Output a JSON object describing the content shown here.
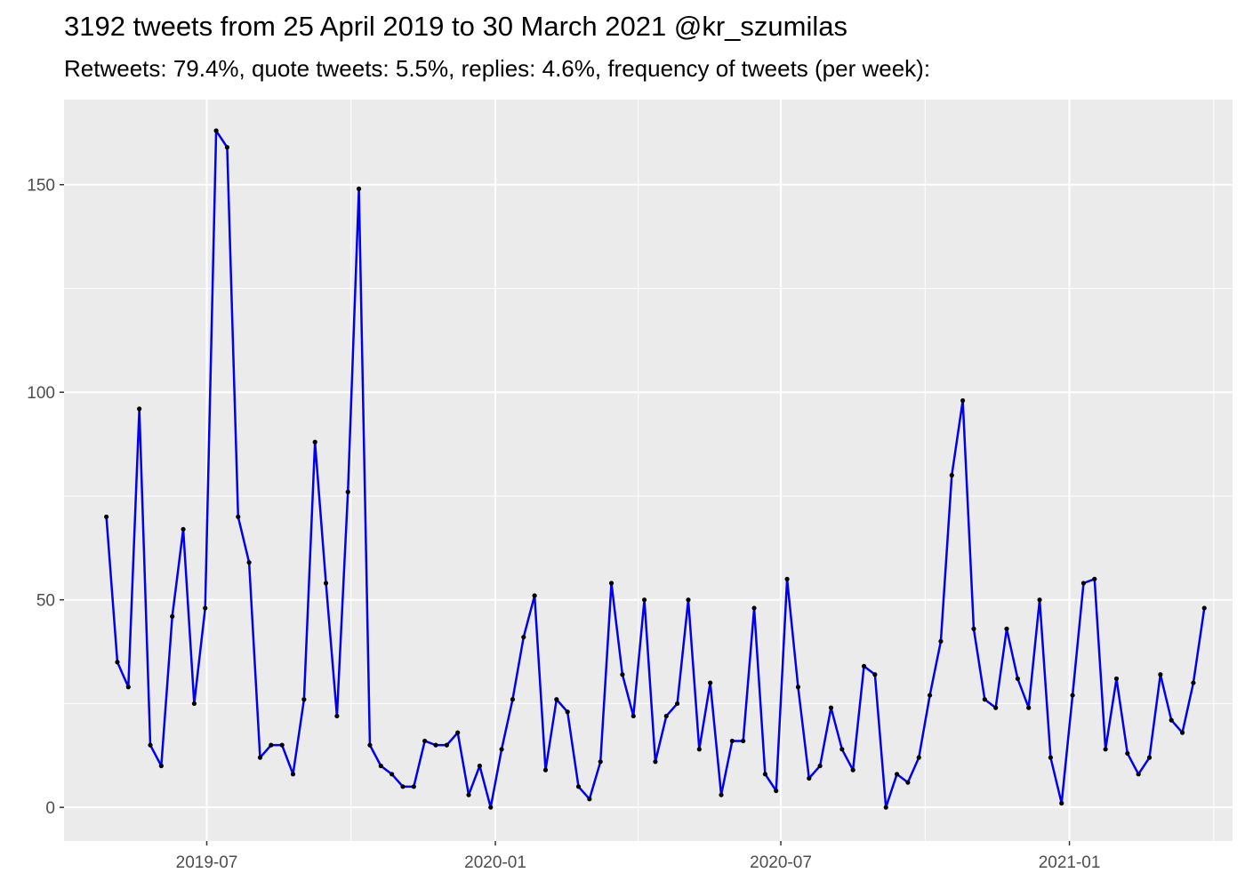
{
  "chart_data": {
    "type": "line",
    "title": "3192 tweets from 25 April 2019 to 30 March 2021 @kr_szumilas",
    "subtitle": "Retweets: 79.4%, quote tweets: 5.5%, replies: 4.6%, frequency of tweets (per week):",
    "xlabel": "",
    "ylabel": "",
    "x_ticks": [
      {
        "date": "2019-07-01",
        "label": "2019-07"
      },
      {
        "date": "2020-01-01",
        "label": "2020-01"
      },
      {
        "date": "2020-07-01",
        "label": "2020-07"
      },
      {
        "date": "2021-01-01",
        "label": "2021-01"
      }
    ],
    "y_ticks": [
      0,
      50,
      100,
      150
    ],
    "xlim": [
      "2019-04-01",
      "2021-04-15"
    ],
    "ylim": [
      -8.1,
      170.5
    ],
    "grid": true,
    "colors": {
      "panel": "#ebebeb",
      "grid": "#ffffff",
      "line": "#0000ee",
      "point": "#000000"
    },
    "series": [
      {
        "x": [
          "2019-04-28",
          "2019-05-05",
          "2019-05-12",
          "2019-05-19",
          "2019-05-26",
          "2019-06-02",
          "2019-06-09",
          "2019-06-16",
          "2019-06-23",
          "2019-06-30",
          "2019-07-07",
          "2019-07-14",
          "2019-07-21",
          "2019-07-28",
          "2019-08-04",
          "2019-08-11",
          "2019-08-18",
          "2019-08-25",
          "2019-09-01",
          "2019-09-08",
          "2019-09-15",
          "2019-09-22",
          "2019-09-29",
          "2019-10-06",
          "2019-10-13",
          "2019-10-20",
          "2019-10-27",
          "2019-11-03",
          "2019-11-10",
          "2019-11-17",
          "2019-11-24",
          "2019-12-01",
          "2019-12-08",
          "2019-12-15",
          "2019-12-22",
          "2019-12-29",
          "2020-01-05",
          "2020-01-12",
          "2020-01-19",
          "2020-01-26",
          "2020-02-02",
          "2020-02-09",
          "2020-02-16",
          "2020-02-23",
          "2020-03-01",
          "2020-03-08",
          "2020-03-15",
          "2020-03-22",
          "2020-03-29",
          "2020-04-05",
          "2020-04-12",
          "2020-04-19",
          "2020-04-26",
          "2020-05-03",
          "2020-05-10",
          "2020-05-17",
          "2020-05-24",
          "2020-05-31",
          "2020-06-07",
          "2020-06-14",
          "2020-06-21",
          "2020-06-28",
          "2020-07-05",
          "2020-07-12",
          "2020-07-19",
          "2020-07-26",
          "2020-08-02",
          "2020-08-09",
          "2020-08-16",
          "2020-08-23",
          "2020-08-30",
          "2020-09-06",
          "2020-09-13",
          "2020-09-20",
          "2020-09-27",
          "2020-10-04",
          "2020-10-11",
          "2020-10-18",
          "2020-10-25",
          "2020-11-01",
          "2020-11-08",
          "2020-11-15",
          "2020-11-22",
          "2020-11-29",
          "2020-12-06",
          "2020-12-13",
          "2020-12-20",
          "2020-12-27",
          "2021-01-03",
          "2021-01-10",
          "2021-01-17",
          "2021-01-24",
          "2021-01-31",
          "2021-02-07",
          "2021-02-14",
          "2021-02-21",
          "2021-02-28",
          "2021-03-07",
          "2021-03-14",
          "2021-03-21",
          "2021-03-28"
        ],
        "values": [
          70,
          35,
          29,
          96,
          15,
          10,
          46,
          67,
          25,
          48,
          163,
          159,
          70,
          59,
          12,
          15,
          15,
          8,
          26,
          88,
          54,
          22,
          76,
          149,
          15,
          10,
          8,
          5,
          5,
          16,
          15,
          15,
          18,
          3,
          10,
          0,
          14,
          26,
          41,
          51,
          9,
          26,
          23,
          5,
          2,
          11,
          54,
          32,
          22,
          50,
          11,
          22,
          25,
          50,
          14,
          30,
          3,
          16,
          16,
          48,
          8,
          4,
          55,
          29,
          7,
          10,
          24,
          14,
          9,
          34,
          32,
          0,
          8,
          6,
          12,
          27,
          40,
          80,
          98,
          43,
          26,
          24,
          43,
          31,
          24,
          50,
          12,
          1,
          27,
          54,
          55,
          14,
          31,
          13,
          8,
          12,
          32,
          21,
          18,
          30,
          48
        ]
      }
    ]
  }
}
